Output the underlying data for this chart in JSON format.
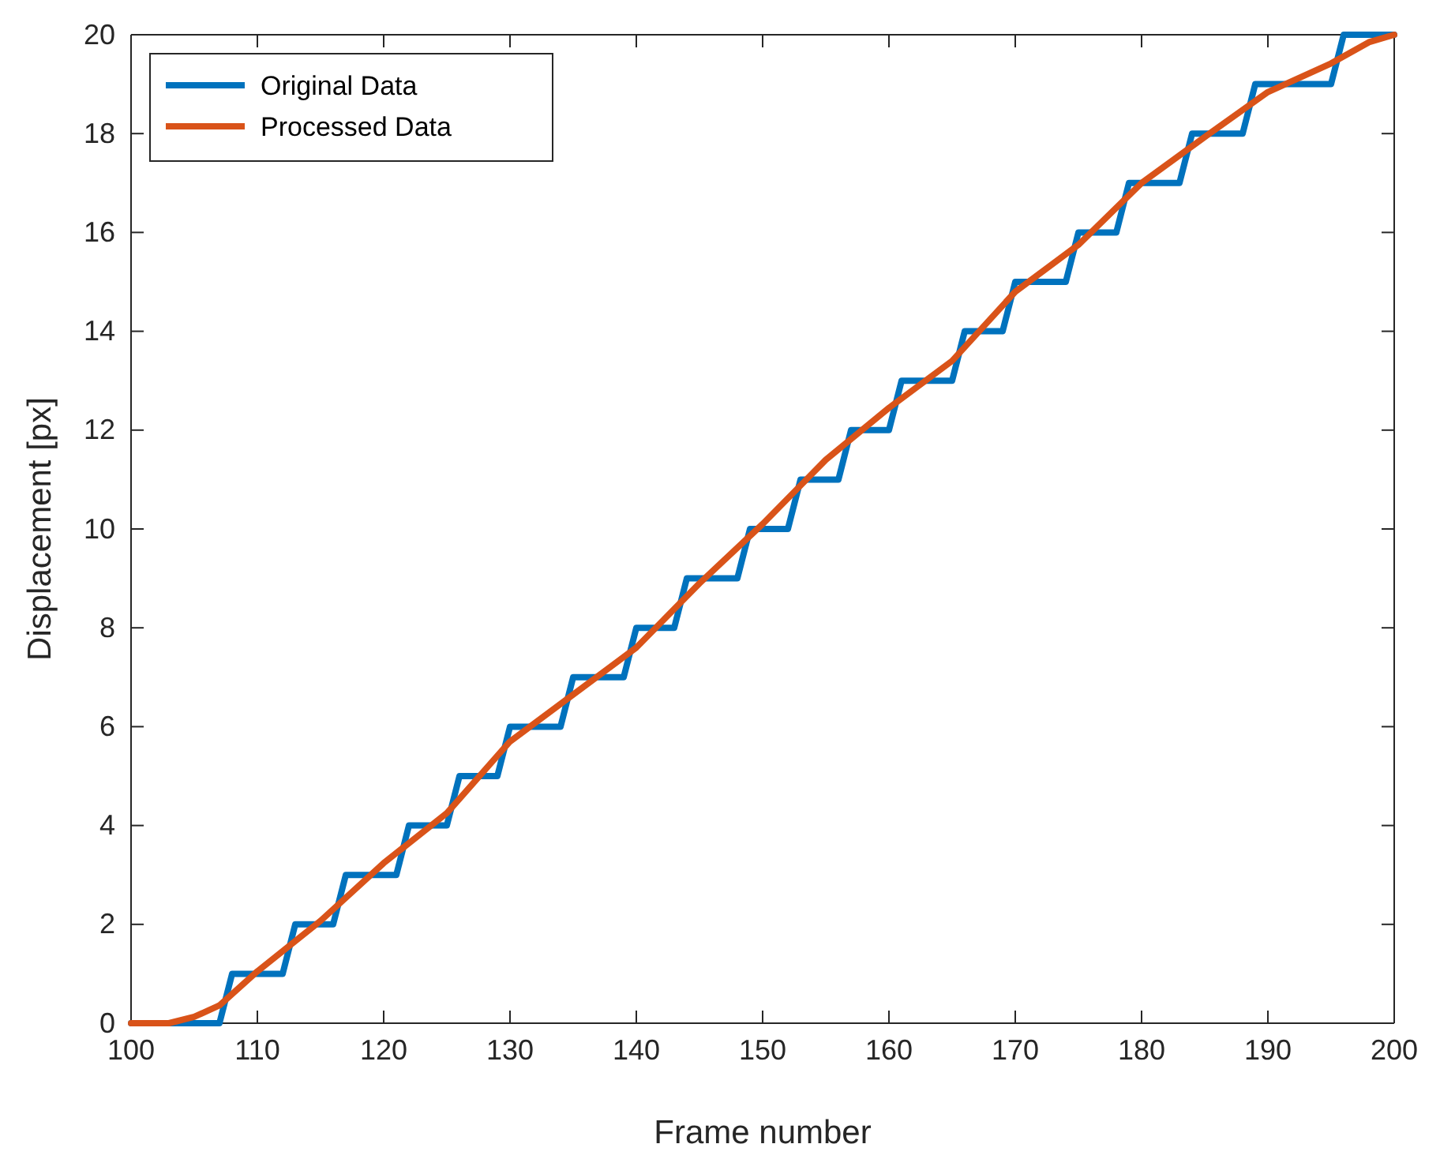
{
  "chart_data": {
    "type": "line",
    "xlabel": "Frame number",
    "ylabel": "Displacement [px]",
    "xlim": [
      100,
      200
    ],
    "ylim": [
      0,
      20
    ],
    "xticks": [
      100,
      110,
      120,
      130,
      140,
      150,
      160,
      170,
      180,
      190,
      200
    ],
    "yticks": [
      0,
      2,
      4,
      6,
      8,
      10,
      12,
      14,
      16,
      18,
      20
    ],
    "grid": false,
    "legend": "top left",
    "line_style": "solid",
    "marker": "none",
    "series": [
      {
        "name": "Original Data",
        "color": "#0072bd",
        "x": [
          100,
          107,
          108,
          112,
          113,
          116,
          117,
          121,
          122,
          125,
          126,
          129,
          130,
          134,
          135,
          139,
          140,
          143,
          144,
          148,
          149,
          152,
          153,
          156,
          157,
          160,
          161,
          165,
          166,
          169,
          170,
          174,
          175,
          178,
          179,
          183,
          184,
          188,
          189,
          195,
          196,
          200
        ],
        "values": [
          0,
          0,
          1,
          1,
          2,
          2,
          3,
          3,
          4,
          4,
          5,
          5,
          6,
          6,
          7,
          7,
          8,
          8,
          9,
          9,
          10,
          10,
          11,
          11,
          12,
          12,
          13,
          13,
          14,
          14,
          15,
          15,
          16,
          16,
          17,
          17,
          18,
          18,
          19,
          19,
          20,
          20
        ]
      },
      {
        "name": "Processed Data",
        "color": "#d95319",
        "x": [
          100,
          103,
          105,
          107,
          110,
          115,
          120,
          125,
          130,
          135,
          140,
          145,
          150,
          155,
          160,
          165,
          170,
          175,
          180,
          185,
          190,
          195,
          198,
          200
        ],
        "values": [
          0,
          0,
          0.13,
          0.36,
          1.05,
          2.07,
          3.24,
          4.25,
          5.7,
          6.65,
          7.6,
          8.9,
          10.1,
          11.4,
          12.45,
          13.4,
          14.8,
          15.75,
          17.0,
          17.93,
          18.84,
          19.42,
          19.85,
          20
        ]
      }
    ]
  }
}
